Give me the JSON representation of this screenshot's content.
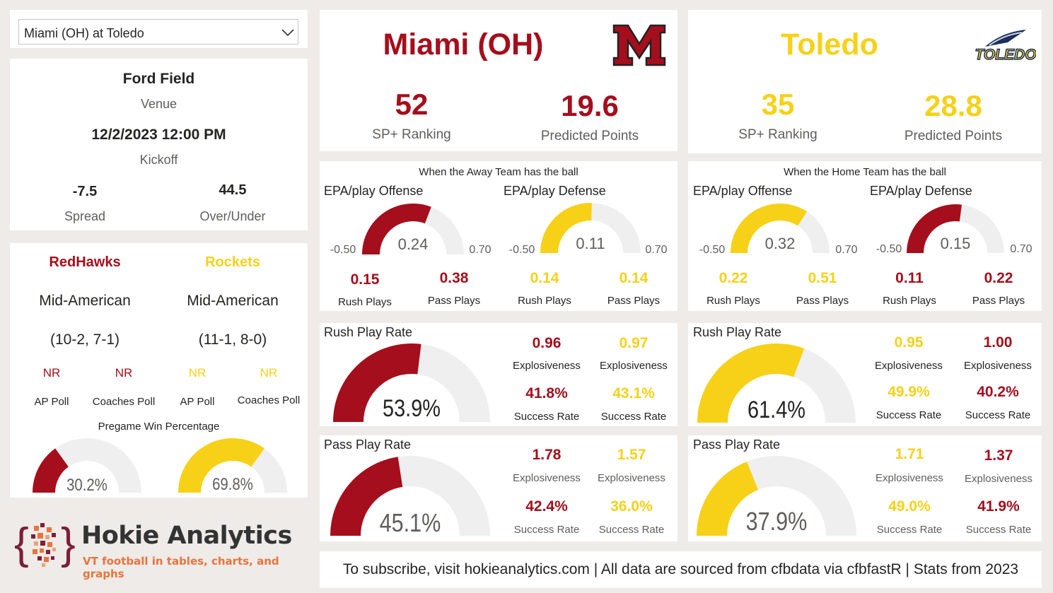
{
  "colors": {
    "away": "#a50e1c",
    "home": "#f7d117",
    "track": "#efefef",
    "text": "#252423",
    "muted": "#605e5c",
    "brand_purple": "#7b1f3a",
    "brand_orange": "#e8743b"
  },
  "selector": {
    "value": "Miami (OH) at Toledo",
    "icon": "chevron-down-icon"
  },
  "game": {
    "venue": "Ford Field",
    "venue_label": "Venue",
    "kickoff": "12/2/2023 12:00 PM",
    "kickoff_label": "Kickoff",
    "spread": "-7.5",
    "spread_label": "Spread",
    "over_under": "44.5",
    "over_under_label": "Over/Under"
  },
  "teams_info": {
    "away": {
      "mascot": "RedHawks",
      "conference": "Mid-American",
      "record": "(10-2, 7-1)",
      "ap_rank": "NR",
      "coaches_rank": "NR"
    },
    "home": {
      "mascot": "Rockets",
      "conference": "Mid-American",
      "record": "(11-1, 8-0)",
      "ap_rank": "NR",
      "coaches_rank": "NR"
    },
    "ap_label": "AP Poll",
    "coaches_label": "Coaches Poll"
  },
  "win_pct": {
    "title": "Pregame Win Percentage",
    "away": {
      "value": 30.2,
      "label": "30.2%"
    },
    "home": {
      "value": 69.8,
      "label": "69.8%"
    }
  },
  "brand": {
    "name": "Hokie Analytics",
    "tagline": "VT football in tables, charts, and graphs"
  },
  "away": {
    "name": "Miami (OH)",
    "logo": "miami-m-logo",
    "sp_rank": "52",
    "sp_label": "SP+ Ranking",
    "pred_pts": "19.6",
    "pred_label": "Predicted Points",
    "epa_title": "When the Away Team has the ball",
    "epa_offense": {
      "label": "EPA/play Offense",
      "value": 0.24,
      "value_label": "0.24",
      "min": "-0.50",
      "max": "0.70",
      "rush": "0.15",
      "pass": "0.38"
    },
    "epa_defense": {
      "label": "EPA/play Defense",
      "value": 0.11,
      "value_label": "0.11",
      "min": "-0.50",
      "max": "0.70",
      "rush": "0.14",
      "pass": "0.14"
    },
    "rush": {
      "title": "Rush Play Rate",
      "rate": 53.9,
      "rate_label": "53.9%",
      "off_expl": "0.96",
      "def_expl": "0.97",
      "off_sr": "41.8%",
      "def_sr": "43.1%"
    },
    "pass": {
      "title": "Pass Play Rate",
      "rate": 45.1,
      "rate_label": "45.1%",
      "off_expl": "1.78",
      "def_expl": "1.57",
      "off_sr": "42.4%",
      "def_sr": "36.0%"
    }
  },
  "home": {
    "name": "Toledo",
    "logo": "toledo-rocket-logo",
    "logo_text": "TOLEDO",
    "sp_rank": "35",
    "sp_label": "SP+ Ranking",
    "pred_pts": "28.8",
    "pred_label": "Predicted Points",
    "epa_title": "When the Home Team has the ball",
    "epa_offense": {
      "label": "EPA/play Offense",
      "value": 0.32,
      "value_label": "0.32",
      "min": "-0.50",
      "max": "0.70",
      "rush": "0.22",
      "pass": "0.51"
    },
    "epa_defense": {
      "label": "EPA/play Defense",
      "value": 0.15,
      "value_label": "0.15",
      "min": "-0.50",
      "max": "0.70",
      "rush": "0.11",
      "pass": "0.22"
    },
    "rush": {
      "title": "Rush Play Rate",
      "rate": 61.4,
      "rate_label": "61.4%",
      "off_expl": "0.95",
      "def_expl": "1.00",
      "off_sr": "49.9%",
      "def_sr": "40.2%"
    },
    "pass": {
      "title": "Pass Play Rate",
      "rate": 37.9,
      "rate_label": "37.9%",
      "off_expl": "1.71",
      "def_expl": "1.37",
      "off_sr": "49.0%",
      "def_sr": "41.9%"
    }
  },
  "labels": {
    "rush_plays": "Rush Plays",
    "pass_plays": "Pass Plays",
    "explosiveness": "Explosiveness",
    "success_rate": "Success Rate"
  },
  "footer": "To subscribe, visit hokieanalytics.com | All data are sourced from cfbdata via cfbfastR | Stats from 2023"
}
